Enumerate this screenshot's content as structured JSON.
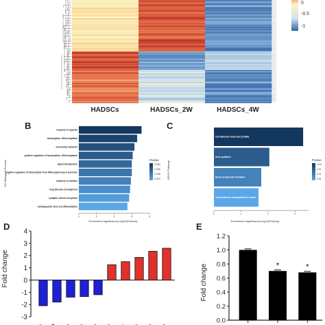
{
  "panel_a": {
    "columns": [
      "HADSCs",
      "HADSCs_2W",
      "HADSCs_4W"
    ],
    "colorbar_ticks": [
      "0",
      "-0.5",
      "-1"
    ],
    "colors": {
      "high": "#c0392b",
      "mid": "#fff6c0",
      "low": "#3565a6"
    }
  },
  "panel_b": {
    "letter": "B",
    "ylabel": "GO Biological Process",
    "xlabel": "Enrichment significance(-log10(Pvalue))",
    "legend_title": "Pvalue",
    "legend_ticks": [
      "0.004",
      "0.006",
      "0.008",
      "0.010"
    ]
  },
  "panel_c": {
    "letter": "C",
    "ylabel": "KEGG Pathway",
    "xlabel": "Enrichment significance(-log10(Pvalue))",
    "legend_title": "Pvalue",
    "legend_ticks": [
      "0.00",
      "0.01",
      "0.01",
      "0.01"
    ]
  },
  "panel_d": {
    "letter": "D",
    "ylabel": "Fold change"
  },
  "panel_e": {
    "letter": "E",
    "ylabel": "Fold change"
  },
  "chart_data": [
    {
      "type": "bar",
      "orientation": "horizontal",
      "categories": [
        "response to hypoxia",
        "transcription, DNA-templated",
        "locomotory behavior",
        "positive regulation of transcription, DNA-templated",
        "signal transduction",
        "negative regulation of transcription from RNA polymerase II promoter",
        "response to nicotine",
        "lung alveolus development",
        "synaptic vesicle exocytosis",
        "hematopoietic stem cell differentiation"
      ],
      "values": [
        3.55,
        3.3,
        3.15,
        3.05,
        3.0,
        3.0,
        2.95,
        2.9,
        2.85,
        2.75
      ],
      "xlim": [
        0,
        4
      ],
      "xticks": [
        "0",
        "1",
        "2",
        "3",
        "4"
      ],
      "xlabel": "Enrichment significance(-log10(Pvalue))",
      "ylabel": "GO Biological Process"
    },
    {
      "type": "bar",
      "orientation": "horizontal",
      "categories": [
        "Cell adhesion molecules (CAMs)",
        "Axon guidance",
        "Dorso-ventral axis formation",
        "Transcriptional misregulation in cancer"
      ],
      "values": [
        3.3,
        2.05,
        1.75,
        1.65
      ],
      "xlim": [
        0,
        3.5
      ],
      "xticks": [
        "0",
        "1",
        "2",
        "3"
      ],
      "xlabel": "Enrichment significance(-log10(Pvalue))",
      "ylabel": "KEGG Pathway"
    },
    {
      "type": "bar",
      "categories": [
        "-3p",
        "-24B",
        "-5p",
        "-5p",
        "-3p",
        "-5p",
        "149a",
        "-5p",
        "-5p",
        "-3p"
      ],
      "values": [
        -2.1,
        -1.8,
        -1.4,
        -1.35,
        -1.2,
        1.25,
        1.5,
        1.85,
        2.35,
        2.6
      ],
      "colors": [
        "#1f1fd6",
        "#1f1fd6",
        "#1f1fd6",
        "#1f1fd6",
        "#1f1fd6",
        "#e0312b",
        "#e0312b",
        "#e0312b",
        "#e0312b",
        "#e0312b"
      ],
      "ylim": [
        -3,
        4
      ],
      "yticks": [
        "4",
        "3",
        "2",
        "1",
        "0",
        "-1",
        "-2",
        "-3"
      ],
      "ylabel": "Fold change"
    },
    {
      "type": "bar",
      "categories": [
        "",
        "",
        ""
      ],
      "values": [
        1.0,
        0.7,
        0.68
      ],
      "significance": [
        "",
        "*",
        "*"
      ],
      "ylim": [
        0,
        1.2
      ],
      "yticks": [
        "1.2",
        "1.0",
        "0.8",
        "0.6",
        "0.4",
        "0.2",
        "0.0"
      ],
      "ylabel": "Fold change"
    }
  ]
}
